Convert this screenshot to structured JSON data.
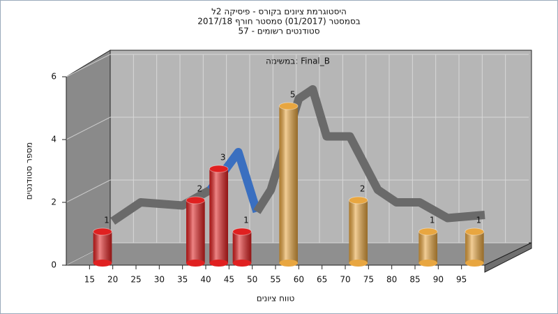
{
  "chart_data": {
    "type": "histogram",
    "title": [
      "היסטוגרמת ציונים בקורס - פיסיקה 2ל",
      "בסמסטר  (01/2017)  סמסטר חורף  2017/18",
      "סטודנטים רשומים - 57"
    ],
    "annotation": "במשימה: Final_B",
    "x_label": "טווח ציונים",
    "y_label": "מספר סטודנטים",
    "bins": [
      10,
      15,
      20,
      25,
      30,
      35,
      40,
      45,
      50,
      55,
      60,
      65,
      70,
      75,
      80,
      85,
      90,
      95,
      100
    ],
    "values": [
      0,
      1,
      0,
      0,
      0,
      2,
      3,
      1,
      0,
      5,
      0,
      0,
      2,
      0,
      0,
      1,
      0,
      1
    ],
    "colors": [
      "#e02020",
      "#e02020",
      "#e02020",
      "#e02020",
      "#e02020",
      "#e02020",
      "#e02020",
      "#e02020",
      "#e02020",
      "#e8a640",
      "#e8a640",
      "#e8a640",
      "#e8a640",
      "#e8a640",
      "#e8a640",
      "#e8a640",
      "#e8a640",
      "#e8a640"
    ],
    "curves": [
      {
        "color": "#6a6a6a",
        "x": [
          20,
          26,
          35,
          41
        ],
        "values": [
          1.4,
          2,
          1.9,
          2.4
        ]
      },
      {
        "color": "#3a6fc0",
        "x": [
          41,
          47,
          51
        ],
        "values": [
          2.4,
          3.6,
          1.7
        ]
      },
      {
        "color": "#6a6a6a",
        "x": [
          51,
          54,
          60,
          63,
          66,
          71,
          77,
          81,
          86,
          92,
          100
        ],
        "values": [
          1.7,
          2.4,
          5.3,
          5.6,
          4.1,
          4.1,
          2.4,
          2,
          2,
          1.5,
          1.6
        ]
      }
    ],
    "xlim": [
      10,
      100
    ],
    "ylim": [
      0,
      6
    ],
    "xticks": [
      15,
      20,
      25,
      30,
      35,
      40,
      45,
      50,
      55,
      60,
      65,
      70,
      75,
      80,
      85,
      90,
      95
    ],
    "yticks": [
      0,
      2,
      4,
      6
    ],
    "grid": true
  }
}
